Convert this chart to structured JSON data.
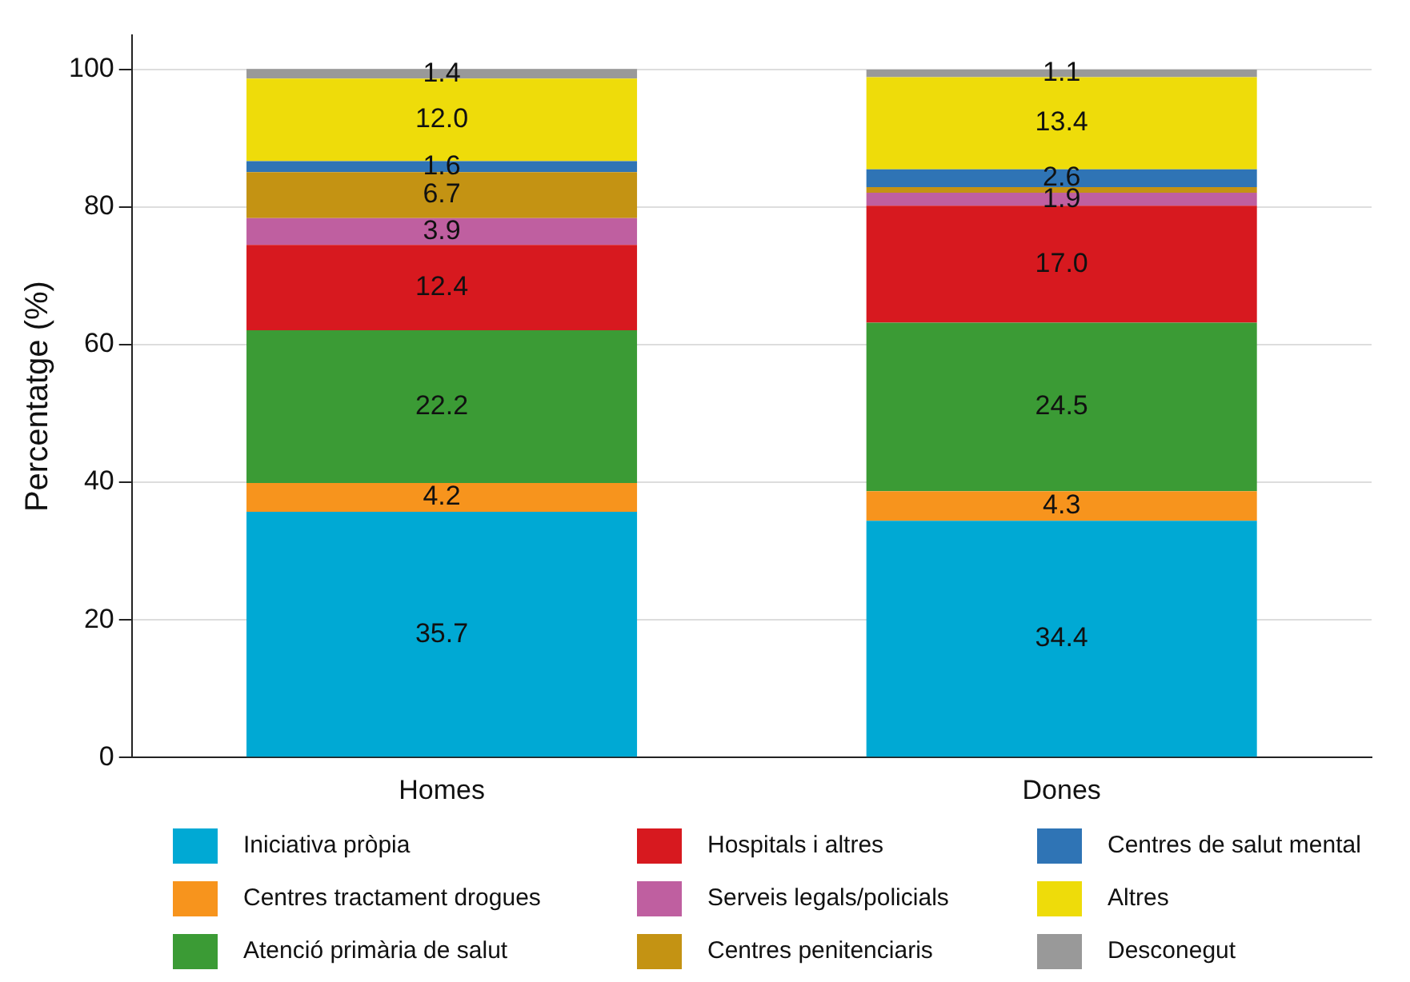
{
  "chart_data": {
    "type": "bar",
    "stacked": true,
    "ylabel": "Percentatge (%)",
    "categories": [
      "Homes",
      "Dones"
    ],
    "ylim": [
      0,
      105
    ],
    "yticks": [
      0,
      20,
      40,
      60,
      80,
      100
    ],
    "grid": "y",
    "legend": "bottom",
    "series": [
      {
        "name": "Iniciativa pròpia",
        "color": "#00a9d4",
        "values": [
          35.7,
          34.4
        ],
        "value_labels": [
          "35.7",
          "34.4"
        ]
      },
      {
        "name": "Centres tractament drogues",
        "color": "#f7941d",
        "values": [
          4.2,
          4.3
        ],
        "value_labels": [
          "4.2",
          "4.3"
        ]
      },
      {
        "name": "Atenció primària de salut",
        "color": "#3b9b35",
        "values": [
          22.2,
          24.5
        ],
        "value_labels": [
          "22.2",
          "24.5"
        ]
      },
      {
        "name": "Hospitals i altres",
        "color": "#d7191f",
        "values": [
          12.4,
          17.0
        ],
        "value_labels": [
          "12.4",
          "17.0"
        ]
      },
      {
        "name": "Serveis legals/policials",
        "color": "#bf5fa0",
        "values": [
          3.9,
          1.9
        ],
        "value_labels": [
          "3.9",
          "1.9"
        ]
      },
      {
        "name": "Centres penitenciaris",
        "color": "#c49313",
        "values": [
          6.7,
          0.8
        ],
        "value_labels": [
          "6.7",
          null
        ]
      },
      {
        "name": "Centres de salut mental",
        "color": "#2f74b5",
        "values": [
          1.6,
          2.6
        ],
        "value_labels": [
          "1.6",
          "2.6"
        ]
      },
      {
        "name": "Altres",
        "color": "#eedc0a",
        "values": [
          12.0,
          13.4
        ],
        "value_labels": [
          "12.0",
          "13.4"
        ]
      },
      {
        "name": "Desconegut",
        "color": "#999999",
        "values": [
          1.4,
          1.1
        ],
        "value_labels": [
          "1.4",
          "1.1"
        ]
      }
    ]
  }
}
